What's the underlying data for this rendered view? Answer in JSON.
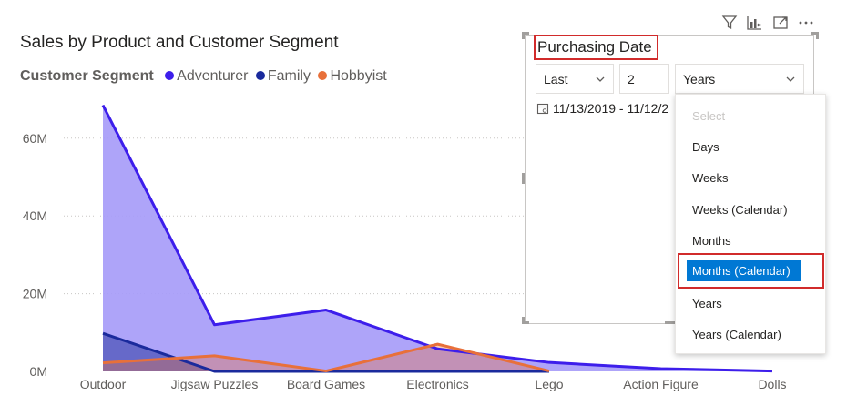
{
  "visual_header": {
    "icons": [
      "filter-icon",
      "drill-icon",
      "focus-mode-icon",
      "more-options-icon"
    ]
  },
  "chart_data": {
    "type": "area",
    "title": "Sales by Product and Customer Segment",
    "legend_title": "Customer Segment",
    "legend_position": "top-left",
    "categories": [
      "Outdoor",
      "Jigsaw Puzzles",
      "Board Games",
      "Electronics",
      "Lego",
      "Action Figure",
      "Dolls"
    ],
    "series": [
      {
        "name": "Adventurer",
        "color": "#3d1eeb",
        "fill": "#a79cf9",
        "values": [
          68.5,
          12,
          15.8,
          5.8,
          2.3,
          0.7,
          0.1
        ]
      },
      {
        "name": "Family",
        "color": "#1a2a9c",
        "fill": "#4d55b8",
        "values": [
          9.8,
          0,
          0,
          0,
          0,
          null,
          null
        ]
      },
      {
        "name": "Hobbyist",
        "color": "#e8703a",
        "fill": "#e8703a",
        "values": [
          2.2,
          4,
          0.1,
          7,
          0.1,
          null,
          null
        ]
      }
    ],
    "y_ticks": [
      "0M",
      "20M",
      "40M",
      "60M"
    ],
    "y_tick_values": [
      0,
      20,
      40,
      60
    ],
    "ylim": [
      0,
      70
    ],
    "grid": true
  },
  "slicer": {
    "title": "Purchasing Date",
    "relative_mode": "Last",
    "period_count": "2",
    "period_unit": "Years",
    "date_range": "11/13/2019 - 11/12/2",
    "dropdown": {
      "placeholder": "Select",
      "options": [
        "Days",
        "Weeks",
        "Weeks (Calendar)",
        "Months",
        "Months (Calendar)",
        "Years",
        "Years (Calendar)"
      ],
      "selected": "Months (Calendar)"
    }
  }
}
